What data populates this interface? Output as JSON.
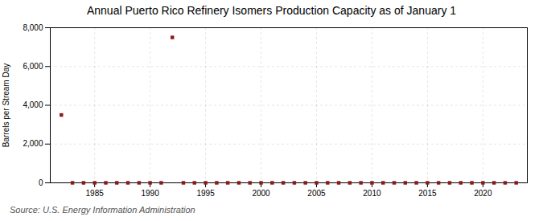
{
  "chart_data": {
    "type": "scatter",
    "title": "Annual Puerto Rico Refinery Isomers Production Capacity as of January 1",
    "ylabel": "Barrels per Stream Day",
    "source": "Source: U.S. Energy Information Administration",
    "x": [
      1982,
      1983,
      1984,
      1985,
      1986,
      1987,
      1988,
      1989,
      1990,
      1991,
      1992,
      1993,
      1994,
      1995,
      1996,
      1997,
      1998,
      1999,
      2000,
      2001,
      2002,
      2003,
      2004,
      2005,
      2006,
      2007,
      2008,
      2009,
      2010,
      2011,
      2012,
      2013,
      2014,
      2015,
      2016,
      2017,
      2018,
      2019,
      2020,
      2021,
      2022,
      2023
    ],
    "values": [
      3500,
      0,
      0,
      0,
      0,
      0,
      0,
      0,
      0,
      0,
      7500,
      0,
      0,
      0,
      0,
      0,
      0,
      0,
      0,
      0,
      0,
      0,
      0,
      0,
      0,
      0,
      0,
      0,
      0,
      0,
      0,
      0,
      0,
      0,
      0,
      0,
      0,
      0,
      0,
      0,
      0,
      0
    ],
    "color": "#8b1a1a",
    "marker": "square",
    "xlim": [
      1981,
      2024
    ],
    "ylim": [
      0,
      8000
    ],
    "xticks": [
      1985,
      1990,
      1995,
      2000,
      2005,
      2010,
      2015,
      2020
    ],
    "yticks": [
      0,
      {
        "value": 2000,
        "label": "2,000"
      },
      {
        "value": 4000,
        "label": "4,000"
      },
      {
        "value": 6000,
        "label": "6,000"
      },
      {
        "value": 8000,
        "label": "8,000"
      }
    ],
    "grid": true
  }
}
